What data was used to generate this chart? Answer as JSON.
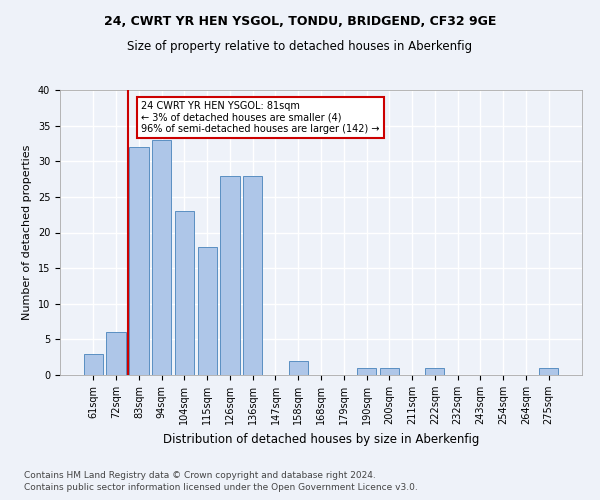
{
  "title1": "24, CWRT YR HEN YSGOL, TONDU, BRIDGEND, CF32 9GE",
  "title2": "Size of property relative to detached houses in Aberkenfig",
  "xlabel": "Distribution of detached houses by size in Aberkenfig",
  "ylabel": "Number of detached properties",
  "categories": [
    "61sqm",
    "72sqm",
    "83sqm",
    "94sqm",
    "104sqm",
    "115sqm",
    "126sqm",
    "136sqm",
    "147sqm",
    "158sqm",
    "168sqm",
    "179sqm",
    "190sqm",
    "200sqm",
    "211sqm",
    "222sqm",
    "232sqm",
    "243sqm",
    "254sqm",
    "264sqm",
    "275sqm"
  ],
  "values": [
    3,
    6,
    32,
    33,
    23,
    18,
    28,
    28,
    0,
    2,
    0,
    0,
    1,
    1,
    0,
    1,
    0,
    0,
    0,
    0,
    1
  ],
  "bar_color": "#aec6e8",
  "bar_edge_color": "#5a8fc2",
  "vline_color": "#cc0000",
  "annotation_text": "24 CWRT YR HEN YSGOL: 81sqm\n← 3% of detached houses are smaller (4)\n96% of semi-detached houses are larger (142) →",
  "annotation_box_color": "#ffffff",
  "annotation_box_edge": "#cc0000",
  "footer1": "Contains HM Land Registry data © Crown copyright and database right 2024.",
  "footer2": "Contains public sector information licensed under the Open Government Licence v3.0.",
  "ylim": [
    0,
    40
  ],
  "bg_color": "#eef2f9",
  "grid_color": "#ffffff",
  "title1_fontsize": 9,
  "title2_fontsize": 8.5,
  "xlabel_fontsize": 8.5,
  "ylabel_fontsize": 8,
  "tick_fontsize": 7,
  "footer_fontsize": 6.5,
  "yticks": [
    0,
    5,
    10,
    15,
    20,
    25,
    30,
    35,
    40
  ]
}
